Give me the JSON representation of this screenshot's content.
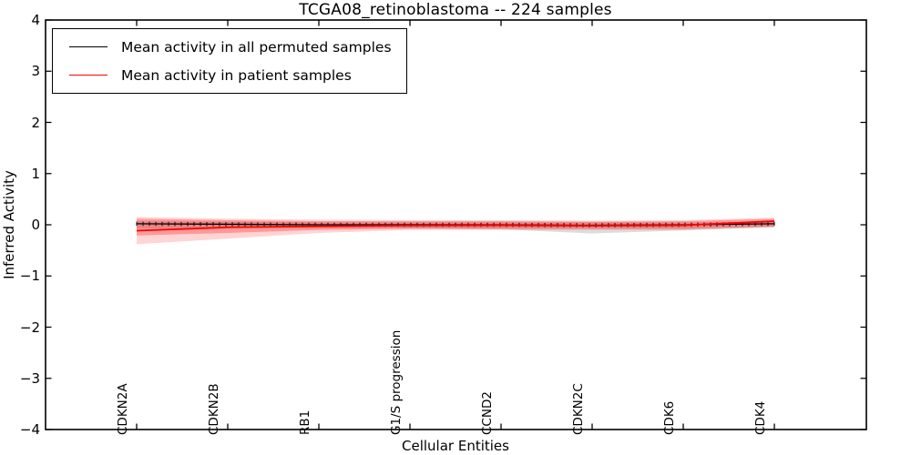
{
  "title": "TCGA08_retinoblastoma -- 224 samples",
  "chart_data": {
    "type": "line",
    "title": "TCGA08_retinoblastoma -- 224 samples",
    "xlabel": "Cellular Entities",
    "ylabel": "Inferred Activity",
    "ylim": [
      -4,
      4
    ],
    "yticks": [
      4,
      3,
      2,
      1,
      0,
      -1,
      -2,
      -3,
      -4
    ],
    "ytick_labels": [
      "4",
      "3",
      "2",
      "1",
      "0",
      "−1",
      "−2",
      "−3",
      "−4"
    ],
    "categories": [
      "CDKN2A",
      "CDKN2B",
      "RB1",
      "G1/S progression",
      "CCND2",
      "CDKN2C",
      "CDK6",
      "CDK4"
    ],
    "grid": false,
    "legend_position": "upper-left",
    "legend": [
      {
        "label": "Mean activity in all permuted samples",
        "color": "#000000"
      },
      {
        "label": "Mean activity in patient samples",
        "color": "#ff0000"
      }
    ],
    "series": [
      {
        "name": "Mean activity in all permuted samples",
        "color": "#000000",
        "marker": "tick",
        "values": [
          0.02,
          0.01,
          0.0,
          0.0,
          0.0,
          -0.01,
          0.0,
          0.02
        ],
        "band": {
          "upper": [
            0.07,
            0.06,
            0.05,
            0.05,
            0.05,
            0.05,
            0.05,
            0.05
          ],
          "lower": [
            -0.07,
            -0.06,
            -0.06,
            -0.07,
            -0.09,
            -0.17,
            -0.11,
            -0.05
          ],
          "color": "#8a8a8a",
          "opacity": 0.3
        }
      },
      {
        "name": "Mean activity in patient samples",
        "color": "#ff0000",
        "marker": "none",
        "values": [
          -0.115,
          -0.05,
          -0.03,
          -0.015,
          -0.01,
          -0.02,
          -0.01,
          0.07
        ],
        "band_inner": {
          "upper": [
            0.115,
            0.09,
            0.07,
            0.07,
            0.07,
            0.06,
            0.07,
            0.115
          ],
          "lower": [
            -0.21,
            -0.16,
            -0.1,
            -0.075,
            -0.075,
            -0.08,
            -0.08,
            -0.03
          ],
          "color": "#ff0000",
          "opacity": 0.28
        },
        "band_outer": {
          "upper": [
            0.15,
            0.12,
            0.1,
            0.09,
            0.09,
            0.08,
            0.09,
            0.14
          ],
          "lower": [
            -0.38,
            -0.27,
            -0.16,
            -0.1,
            -0.1,
            -0.1,
            -0.1,
            -0.05
          ],
          "color": "#ff0000",
          "opacity": 0.17
        }
      }
    ]
  }
}
